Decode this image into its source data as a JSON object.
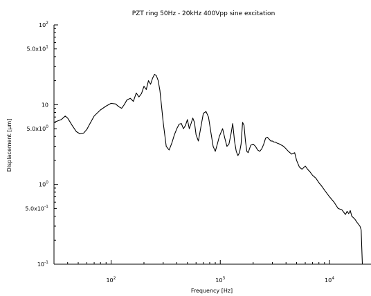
{
  "chart_data": {
    "type": "line",
    "title": "PZT ring 50Hz - 20kHz 400Vpp sine excitation",
    "xlabel": "Frequency [Hz]",
    "ylabel": "Displacement [μm]",
    "x_scale": "log",
    "y_scale": "log",
    "xlim": [
      30,
      24000
    ],
    "ylim": [
      0.1,
      100
    ],
    "x_ticks": [
      {
        "value": 100,
        "base": "10",
        "exp": "2"
      },
      {
        "value": 1000,
        "base": "10",
        "exp": "3"
      },
      {
        "value": 10000,
        "base": "10",
        "exp": "4"
      }
    ],
    "y_ticks": [
      {
        "value": 100,
        "base": "10",
        "exp": "2"
      },
      {
        "value": 50,
        "base": "5.0x10",
        "exp": "1"
      },
      {
        "value": 10,
        "base": "10",
        "exp": ""
      },
      {
        "value": 5,
        "base": "5.0x10",
        "exp": "0"
      },
      {
        "value": 1,
        "base": "10",
        "exp": "0"
      },
      {
        "value": 0.5,
        "base": "5.0x10",
        "exp": "-1"
      },
      {
        "value": 0.1,
        "base": "10",
        "exp": "-1"
      }
    ],
    "grid": false,
    "legend": "none",
    "line_color": "#000000",
    "series": [
      {
        "x": [
          30,
          35,
          38,
          40,
          44,
          48,
          52,
          56,
          60,
          65,
          70,
          80,
          90,
          100,
          110,
          118,
          125,
          132,
          140,
          150,
          160,
          170,
          180,
          190,
          200,
          210,
          220,
          230,
          240,
          250,
          260,
          270,
          280,
          290,
          300,
          320,
          340,
          360,
          380,
          400,
          420,
          440,
          460,
          480,
          500,
          520,
          540,
          560,
          580,
          600,
          630,
          660,
          700,
          740,
          780,
          820,
          860,
          900,
          940,
          980,
          1050,
          1100,
          1150,
          1200,
          1250,
          1300,
          1350,
          1400,
          1450,
          1500,
          1550,
          1600,
          1650,
          1700,
          1750,
          1800,
          1900,
          2000,
          2100,
          2200,
          2300,
          2400,
          2500,
          2600,
          2700,
          2800,
          2900,
          3000,
          3100,
          3200,
          3300,
          3500,
          3800,
          4000,
          4200,
          4500,
          4800,
          5000,
          5300,
          5600,
          6000,
          6300,
          6600,
          7000,
          7500,
          8000,
          8500,
          9000,
          10000,
          11000,
          12000,
          13000,
          14000,
          14500,
          15000,
          15500,
          16000,
          17000,
          18000,
          19000,
          19500,
          20000
        ],
        "y": [
          6.0,
          6.5,
          7.2,
          6.8,
          5.5,
          4.6,
          4.3,
          4.4,
          4.9,
          6.0,
          7.2,
          8.6,
          9.6,
          10.4,
          10.2,
          9.4,
          9.0,
          10.0,
          11.5,
          12.0,
          11.0,
          14.0,
          12.5,
          13.8,
          17.0,
          15.5,
          20.0,
          18.0,
          21.5,
          24.0,
          23.0,
          20.0,
          15.0,
          9.5,
          6.0,
          3.0,
          2.7,
          3.3,
          4.2,
          5.0,
          5.7,
          5.8,
          5.0,
          5.5,
          6.5,
          5.0,
          5.8,
          6.8,
          6.0,
          4.2,
          3.5,
          5.0,
          7.8,
          8.2,
          7.0,
          4.5,
          3.0,
          2.6,
          3.2,
          4.0,
          5.0,
          3.8,
          3.0,
          3.2,
          4.2,
          5.8,
          3.5,
          2.6,
          2.3,
          2.5,
          3.2,
          6.0,
          5.5,
          3.5,
          2.6,
          2.5,
          3.1,
          3.2,
          3.0,
          2.7,
          2.6,
          2.8,
          3.2,
          3.8,
          3.9,
          3.7,
          3.5,
          3.5,
          3.4,
          3.4,
          3.3,
          3.2,
          3.0,
          2.8,
          2.6,
          2.4,
          2.5,
          2.0,
          1.65,
          1.55,
          1.7,
          1.55,
          1.45,
          1.3,
          1.2,
          1.05,
          0.95,
          0.85,
          0.7,
          0.6,
          0.5,
          0.48,
          0.42,
          0.46,
          0.43,
          0.47,
          0.4,
          0.37,
          0.33,
          0.3,
          0.27,
          0.1
        ]
      }
    ]
  }
}
